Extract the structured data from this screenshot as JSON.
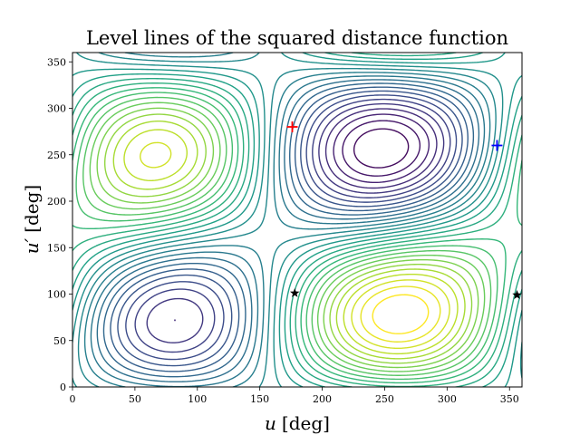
{
  "chart_data": {
    "type": "contour",
    "title": "Level lines of the squared distance function",
    "xlabel_var": "u",
    "xlabel_unit": "[deg]",
    "ylabel_var": "u′",
    "ylabel_unit": "[deg]",
    "xlim": [
      0,
      360
    ],
    "ylim": [
      0,
      360
    ],
    "xticks": [
      0,
      50,
      100,
      150,
      200,
      250,
      300,
      350
    ],
    "yticks": [
      0,
      50,
      100,
      150,
      200,
      250,
      300,
      350
    ],
    "colormap": "viridis",
    "markers": [
      {
        "kind": "plus",
        "color": "#ff0000",
        "x": 176,
        "y": 280
      },
      {
        "kind": "plus",
        "color": "#0000ff",
        "x": 340,
        "y": 260
      },
      {
        "kind": "star",
        "color": "#000000",
        "x": 178,
        "y": 101
      },
      {
        "kind": "star",
        "color": "#000000",
        "x": 356,
        "y": 99
      }
    ]
  }
}
